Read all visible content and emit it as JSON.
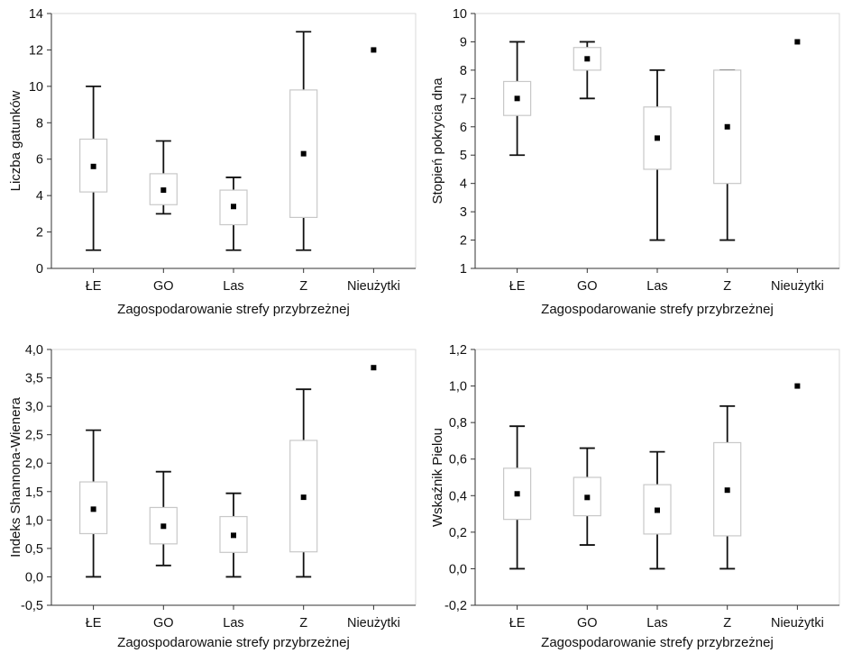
{
  "colors": {
    "box_fill": "#ffffff",
    "box_stroke": "#c8c8c8",
    "whisker": "#111111",
    "mean_marker": "#000000",
    "frame": "#d9d9d9",
    "tick": "#333333"
  },
  "chart_data": [
    {
      "type": "box",
      "xlabel": "Zagospodarowanie strefy przybrzeżnej",
      "ylabel": "Liczba gatunków",
      "ylim": [
        0,
        14
      ],
      "yticks": [
        0,
        2,
        4,
        6,
        8,
        10,
        12,
        14
      ],
      "ytick_labels": [
        "0",
        "2",
        "4",
        "6",
        "8",
        "10",
        "12",
        "14"
      ],
      "grid": false,
      "categories": [
        "ŁE",
        "GO",
        "Las",
        "Z",
        "Nieużytki"
      ],
      "boxes": [
        {
          "whisker_low": 1,
          "q1": 4.2,
          "mean": 5.6,
          "q3": 7.1,
          "whisker_high": 10
        },
        {
          "whisker_low": 3,
          "q1": 3.5,
          "mean": 4.3,
          "q3": 5.2,
          "whisker_high": 7
        },
        {
          "whisker_low": 1,
          "q1": 2.4,
          "mean": 3.4,
          "q3": 4.3,
          "whisker_high": 5
        },
        {
          "whisker_low": 1,
          "q1": 2.8,
          "mean": 6.3,
          "q3": 9.8,
          "whisker_high": 13
        },
        {
          "mean": 12
        }
      ]
    },
    {
      "type": "box",
      "xlabel": "Zagospodarowanie strefy przybrzeżnej",
      "ylabel": "Stopień pokrycia dna",
      "ylim": [
        1,
        10
      ],
      "yticks": [
        1,
        2,
        3,
        4,
        5,
        6,
        7,
        8,
        9,
        10
      ],
      "ytick_labels": [
        "1",
        "2",
        "3",
        "4",
        "5",
        "6",
        "7",
        "8",
        "9",
        "10"
      ],
      "grid": false,
      "categories": [
        "ŁE",
        "GO",
        "Las",
        "Z",
        "Nieużytki"
      ],
      "boxes": [
        {
          "whisker_low": 5,
          "q1": 6.4,
          "mean": 7.0,
          "q3": 7.6,
          "whisker_high": 9
        },
        {
          "whisker_low": 7,
          "q1": 8.0,
          "mean": 8.4,
          "q3": 8.8,
          "whisker_high": 9
        },
        {
          "whisker_low": 2,
          "q1": 4.5,
          "mean": 5.6,
          "q3": 6.7,
          "whisker_high": 8
        },
        {
          "whisker_low": 2,
          "q1": 4.0,
          "mean": 6.0,
          "q3": 8.0,
          "whisker_high": 8
        },
        {
          "mean": 9
        }
      ]
    },
    {
      "type": "box",
      "xlabel": "Zagospodarowanie strefy przybrzeżnej",
      "ylabel": "Indeks Shannona-Wienera",
      "ylim": [
        -0.5,
        4.0
      ],
      "yticks": [
        -0.5,
        0,
        0.5,
        1,
        1.5,
        2,
        2.5,
        3,
        3.5,
        4
      ],
      "ytick_labels": [
        "-0,5",
        "0,0",
        "0,5",
        "1,0",
        "1,5",
        "2,0",
        "2,5",
        "3,0",
        "3,5",
        "4,0"
      ],
      "grid": false,
      "categories": [
        "ŁE",
        "GO",
        "Las",
        "Z",
        "Nieużytki"
      ],
      "boxes": [
        {
          "whisker_low": 0.0,
          "q1": 0.76,
          "mean": 1.19,
          "q3": 1.67,
          "whisker_high": 2.58
        },
        {
          "whisker_low": 0.2,
          "q1": 0.58,
          "mean": 0.89,
          "q3": 1.22,
          "whisker_high": 1.85
        },
        {
          "whisker_low": 0.0,
          "q1": 0.43,
          "mean": 0.73,
          "q3": 1.06,
          "whisker_high": 1.47
        },
        {
          "whisker_low": 0.0,
          "q1": 0.44,
          "mean": 1.4,
          "q3": 2.4,
          "whisker_high": 3.3
        },
        {
          "mean": 3.68
        }
      ]
    },
    {
      "type": "box",
      "xlabel": "Zagospodarowanie strefy przybrzeżnej",
      "ylabel": "Wskaźnik Pielou",
      "ylim": [
        -0.2,
        1.2
      ],
      "yticks": [
        -0.2,
        0,
        0.2,
        0.4,
        0.6,
        0.8,
        1,
        1.2
      ],
      "ytick_labels": [
        "-0,2",
        "0,0",
        "0,2",
        "0,4",
        "0,6",
        "0,8",
        "1,0",
        "1,2"
      ],
      "grid": false,
      "categories": [
        "ŁE",
        "GO",
        "Las",
        "Z",
        "Nieużytki"
      ],
      "boxes": [
        {
          "whisker_low": 0.0,
          "q1": 0.27,
          "mean": 0.41,
          "q3": 0.55,
          "whisker_high": 0.78
        },
        {
          "whisker_low": 0.13,
          "q1": 0.29,
          "mean": 0.39,
          "q3": 0.5,
          "whisker_high": 0.66
        },
        {
          "whisker_low": 0.0,
          "q1": 0.19,
          "mean": 0.32,
          "q3": 0.46,
          "whisker_high": 0.64
        },
        {
          "whisker_low": 0.0,
          "q1": 0.18,
          "mean": 0.43,
          "q3": 0.69,
          "whisker_high": 0.89
        },
        {
          "mean": 1.0
        }
      ]
    }
  ]
}
